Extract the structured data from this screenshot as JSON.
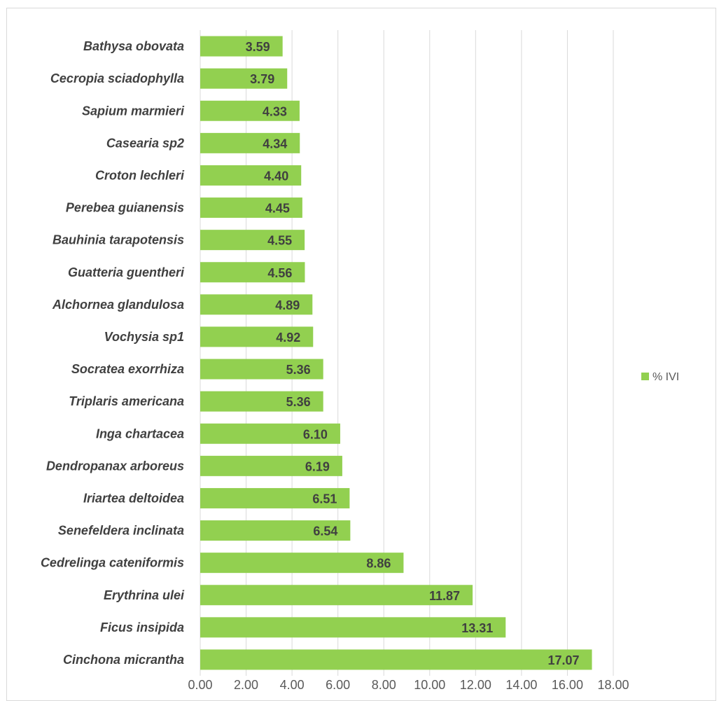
{
  "chart_data": {
    "type": "bar",
    "orientation": "horizontal",
    "title": "",
    "xlabel": "",
    "ylabel": "",
    "xlim": [
      0,
      18
    ],
    "x_ticks": [
      "0.00",
      "2.00",
      "4.00",
      "6.00",
      "8.00",
      "10.00",
      "12.00",
      "14.00",
      "16.00",
      "18.00"
    ],
    "grid": "vertical",
    "legend": "right",
    "bar_color": "#92d050",
    "categories": [
      "Bathysa obovata",
      "Cecropia sciadophylla",
      "Sapium marmieri",
      "Casearia sp2",
      "Croton lechleri",
      "Perebea guianensis",
      "Bauhinia tarapotensis",
      "Guatteria guentheri",
      "Alchornea glandulosa",
      "Vochysia sp1",
      "Socratea exorrhiza",
      "Triplaris americana",
      "Inga chartacea",
      "Dendropanax arboreus",
      "Iriartea deltoidea",
      "Senefeldera inclinata",
      "Cedrelinga cateniformis",
      "Erythrina ulei",
      "Ficus insipida",
      "Cinchona micrantha"
    ],
    "series": [
      {
        "name": "% IVI",
        "values": [
          3.59,
          3.79,
          4.33,
          4.34,
          4.4,
          4.45,
          4.55,
          4.56,
          4.89,
          4.92,
          5.36,
          5.36,
          6.1,
          6.19,
          6.51,
          6.54,
          8.86,
          11.87,
          13.31,
          17.07
        ],
        "labels": [
          "3.59",
          "3.79",
          "4.33",
          "4.34",
          "4.40",
          "4.45",
          "4.55",
          "4.56",
          "4.89",
          "4.92",
          "5.36",
          "5.36",
          "6.10",
          "6.19",
          "6.51",
          "6.54",
          "8.86",
          "11.87",
          "13.31",
          "17.07"
        ]
      }
    ]
  }
}
